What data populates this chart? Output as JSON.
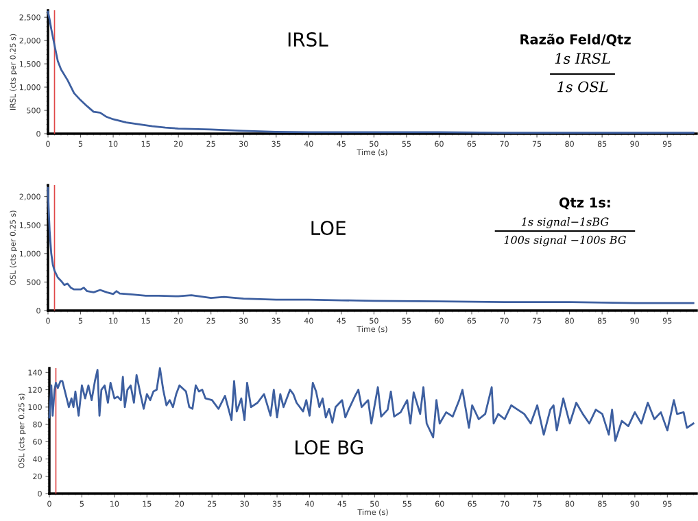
{
  "chart_data": [
    {
      "type": "line",
      "xlabel": "Time (s)",
      "ylabel": "IRSL (cts per 0.25 s)",
      "xlim": [
        0,
        99.5
      ],
      "ylim": [
        0,
        2650
      ],
      "xticks": [
        0,
        5,
        10,
        15,
        20,
        25,
        30,
        35,
        40,
        45,
        50,
        55,
        60,
        65,
        70,
        75,
        80,
        85,
        90,
        95
      ],
      "yticks": [
        {
          "value": 0,
          "label": "0"
        },
        {
          "value": 500,
          "label": "500"
        },
        {
          "value": 1000,
          "label": "1,000"
        },
        {
          "value": 1500,
          "label": "1,500"
        },
        {
          "value": 2000,
          "label": "2,000"
        },
        {
          "value": 2500,
          "label": "2,500"
        }
      ],
      "grid": false,
      "ref_lines": [
        {
          "axis": "x",
          "value": 1,
          "color": "#e04848"
        }
      ],
      "annotations": [
        "IRSL",
        "Razão Feld/Qtz",
        "1s IRSL",
        "1s OSL"
      ],
      "series": [
        {
          "color": "#3d5fa0",
          "x": [
            0,
            0.25,
            0.5,
            1,
            1.5,
            2,
            3,
            4,
            5,
            6,
            7,
            8,
            9,
            10,
            12,
            14,
            16,
            18,
            20,
            25,
            30,
            35,
            40,
            50,
            60,
            70,
            80,
            90,
            99
          ],
          "values": [
            2620,
            2450,
            2250,
            1900,
            1560,
            1380,
            1150,
            870,
            720,
            590,
            470,
            450,
            360,
            310,
            240,
            200,
            160,
            130,
            110,
            90,
            60,
            40,
            30,
            30,
            30,
            20,
            20,
            20,
            20
          ]
        }
      ]
    },
    {
      "type": "line",
      "xlabel": "Time (s)",
      "ylabel": "OSL (cts per 0.25 s)",
      "xlim": [
        0,
        99.5
      ],
      "ylim": [
        0,
        2200
      ],
      "xticks": [
        0,
        5,
        10,
        15,
        20,
        25,
        30,
        35,
        40,
        45,
        50,
        55,
        60,
        65,
        70,
        75,
        80,
        85,
        90,
        95
      ],
      "yticks": [
        {
          "value": 0,
          "label": "0"
        },
        {
          "value": 500,
          "label": "500"
        },
        {
          "value": 1000,
          "label": "1,000"
        },
        {
          "value": 1500,
          "label": "1,500"
        },
        {
          "value": 2000,
          "label": "2,000"
        }
      ],
      "grid": false,
      "ref_lines": [
        {
          "axis": "x",
          "value": 1,
          "color": "#e04848"
        }
      ],
      "annotations": [
        "LOE",
        "Qtz 1s:",
        "1s signal−1sBG",
        "100s signal −100s BG"
      ],
      "series": [
        {
          "color": "#3d5fa0",
          "x": [
            0,
            0.1,
            0.25,
            0.5,
            0.75,
            1,
            1.5,
            2,
            2.5,
            3,
            3.5,
            4,
            5,
            5.5,
            6,
            7,
            8,
            9,
            10,
            10.5,
            11,
            13,
            15,
            17,
            20,
            22,
            25,
            27,
            30,
            35,
            40,
            45,
            50,
            60,
            70,
            80,
            90,
            95,
            99
          ],
          "values": [
            2150,
            1800,
            1400,
            1000,
            800,
            700,
            580,
            520,
            450,
            470,
            400,
            370,
            370,
            400,
            340,
            320,
            360,
            320,
            290,
            340,
            300,
            280,
            260,
            260,
            250,
            270,
            220,
            240,
            210,
            190,
            190,
            180,
            170,
            160,
            150,
            150,
            130,
            130,
            130
          ]
        }
      ]
    },
    {
      "type": "line",
      "xlabel": "Time (s)",
      "ylabel": "OSL (cts per 0.25 s)",
      "xlim": [
        0,
        99.5
      ],
      "ylim": [
        0,
        145
      ],
      "xticks": [
        0,
        5,
        10,
        15,
        20,
        25,
        30,
        35,
        40,
        45,
        50,
        55,
        60,
        65,
        70,
        75,
        80,
        85,
        90,
        95
      ],
      "yticks": [
        0,
        20,
        40,
        60,
        80,
        100,
        120,
        140
      ],
      "grid": false,
      "ref_lines": [
        {
          "axis": "x",
          "value": 1,
          "color": "#e04848"
        }
      ],
      "annotations": [
        "LOE BG"
      ],
      "series": [
        {
          "color": "#3d5fa0",
          "x": [
            0,
            0.3,
            0.5,
            0.8,
            1,
            1.3,
            1.7,
            2,
            2.5,
            3,
            3.4,
            3.7,
            4,
            4.5,
            5,
            5.5,
            6,
            6.5,
            7,
            7.4,
            7.7,
            8,
            8.5,
            9,
            9.4,
            10,
            10.5,
            11,
            11.3,
            11.6,
            12,
            12.5,
            13,
            13.4,
            14,
            14.5,
            15,
            15.5,
            16,
            16.5,
            17,
            17.5,
            18,
            18.5,
            19,
            19.5,
            20,
            21,
            21.5,
            22,
            22.5,
            23,
            23.5,
            24,
            25,
            26,
            27,
            28,
            28.4,
            28.8,
            29.5,
            30,
            30.4,
            31,
            32,
            33,
            34,
            34.5,
            35,
            35.5,
            36,
            37,
            37.5,
            38,
            39,
            39.5,
            40,
            40.5,
            41,
            41.5,
            42,
            42.5,
            43,
            43.5,
            44,
            45,
            45.5,
            46,
            47,
            47.5,
            48,
            49,
            49.5,
            50.5,
            51,
            52,
            52.5,
            53,
            54,
            55,
            55.5,
            56,
            57,
            57.5,
            58,
            59,
            59.5,
            60,
            61,
            62,
            63,
            63.5,
            64.5,
            65,
            66,
            67,
            68,
            68.3,
            69,
            70,
            71,
            72,
            73,
            74,
            75,
            76,
            77,
            77.5,
            78,
            79,
            80,
            81,
            82,
            83,
            84,
            85,
            86,
            86.5,
            87,
            88,
            89,
            90,
            91,
            92,
            93,
            94,
            95,
            96,
            96.5,
            97.5,
            98,
            99
          ],
          "values": [
            88,
            125,
            90,
            120,
            128,
            122,
            130,
            130,
            115,
            100,
            110,
            100,
            118,
            90,
            125,
            110,
            125,
            108,
            130,
            143,
            90,
            120,
            125,
            105,
            128,
            110,
            112,
            108,
            135,
            100,
            120,
            125,
            105,
            137,
            115,
            98,
            115,
            108,
            118,
            120,
            145,
            120,
            102,
            108,
            100,
            115,
            125,
            118,
            100,
            98,
            125,
            118,
            120,
            110,
            108,
            98,
            113,
            85,
            130,
            95,
            110,
            85,
            128,
            100,
            105,
            115,
            90,
            120,
            88,
            115,
            100,
            120,
            115,
            105,
            95,
            108,
            90,
            128,
            118,
            100,
            110,
            88,
            98,
            82,
            100,
            108,
            88,
            97,
            113,
            120,
            100,
            108,
            81,
            123,
            89,
            97,
            118,
            89,
            94,
            108,
            81,
            117,
            92,
            123,
            81,
            65,
            108,
            81,
            94,
            89,
            108,
            120,
            76,
            102,
            86,
            92,
            123,
            81,
            92,
            86,
            102,
            97,
            92,
            81,
            102,
            68,
            97,
            102,
            73,
            110,
            81,
            105,
            92,
            81,
            97,
            92,
            68,
            97,
            61,
            84,
            78,
            94,
            81,
            105,
            86,
            94,
            73,
            108,
            92,
            94,
            76,
            81
          ]
        }
      ]
    }
  ]
}
